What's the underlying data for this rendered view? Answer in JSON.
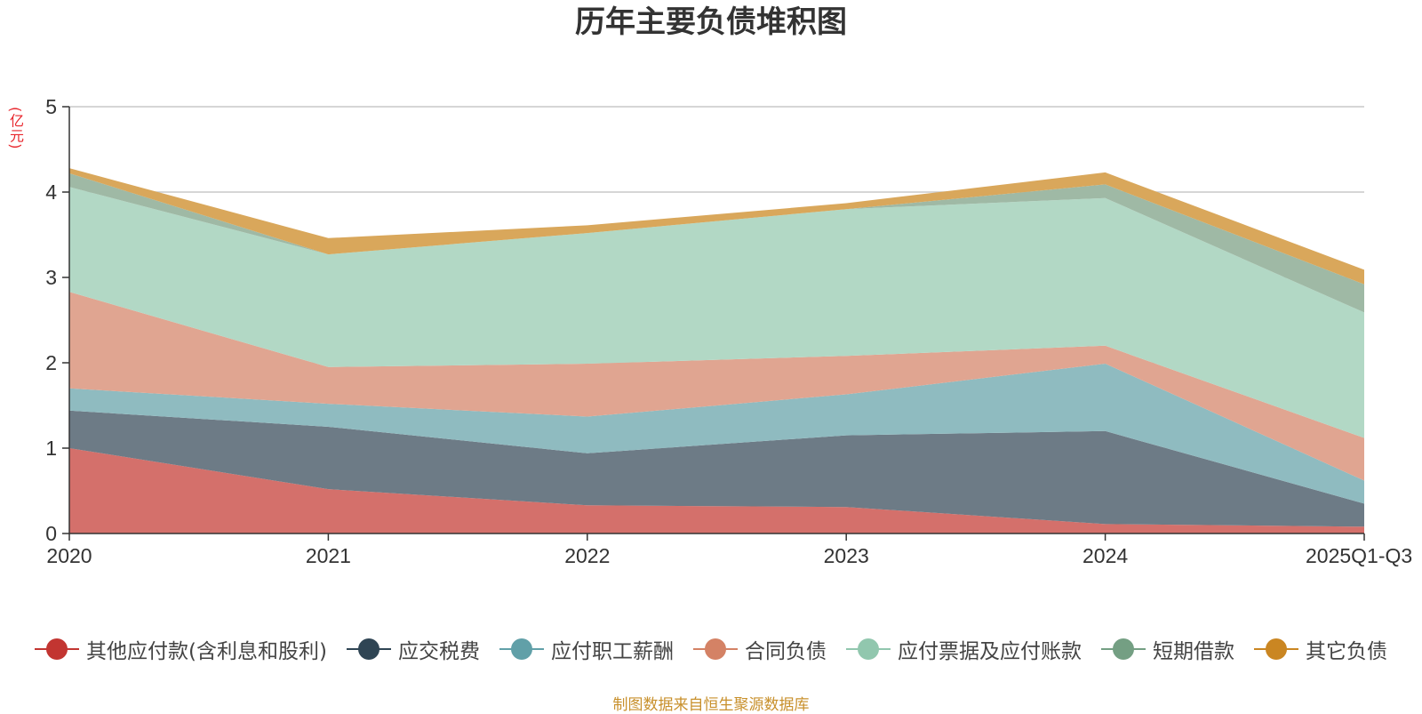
{
  "chart_data": {
    "type": "area",
    "stacked": true,
    "title": "历年主要负债堆积图",
    "ylabel": "(亿元)",
    "xlabel": "",
    "categories": [
      "2020",
      "2021",
      "2022",
      "2023",
      "2024",
      "2025Q1-Q3"
    ],
    "ylim": [
      0,
      5
    ],
    "yticks": [
      0,
      1,
      2,
      3,
      4,
      5
    ],
    "grid": true,
    "legend_position": "bottom",
    "series": [
      {
        "name": "其他应付款(含利息和股利)",
        "color": "#c23531",
        "fill": "#d4706b",
        "values": [
          1.0,
          0.52,
          0.33,
          0.31,
          0.11,
          0.08
        ]
      },
      {
        "name": "应交税费",
        "color": "#2f4554",
        "fill": "#6d7b86",
        "values": [
          0.44,
          0.73,
          0.61,
          0.84,
          1.09,
          0.27
        ]
      },
      {
        "name": "应付职工薪酬",
        "color": "#61a0a8",
        "fill": "#8fbbc0",
        "values": [
          0.26,
          0.27,
          0.43,
          0.48,
          0.79,
          0.27
        ]
      },
      {
        "name": "合同负债",
        "color": "#d48265",
        "fill": "#e0a591",
        "values": [
          1.13,
          0.43,
          0.62,
          0.45,
          0.21,
          0.5
        ]
      },
      {
        "name": "应付票据及应付账款",
        "color": "#91c7ae",
        "fill": "#b2d8c5",
        "values": [
          1.23,
          1.32,
          1.53,
          1.72,
          1.73,
          1.47
        ]
      },
      {
        "name": "短期借款",
        "color": "#749f83",
        "fill": "#9fb9a5",
        "values": [
          0.16,
          0.0,
          0.0,
          0.0,
          0.16,
          0.33
        ]
      },
      {
        "name": "其它负债",
        "color": "#ca8622",
        "fill": "#d9a75b",
        "values": [
          0.06,
          0.19,
          0.09,
          0.07,
          0.14,
          0.17
        ]
      }
    ]
  },
  "footer": {
    "source": "制图数据来自恒生聚源数据库"
  }
}
